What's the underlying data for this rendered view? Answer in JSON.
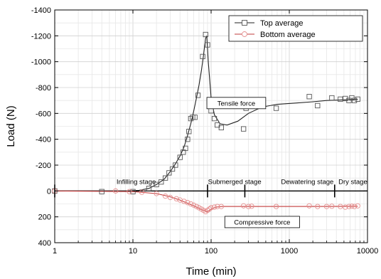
{
  "chart_data": {
    "type": "scatter",
    "xscale": "log",
    "xlim": [
      1,
      10000
    ],
    "ylim": [
      -1400,
      400
    ],
    "yaxis_inverted": true,
    "grid": true,
    "xlabel": "Time (min)",
    "ylabel": "Load (N)",
    "x_ticks": [
      {
        "value": 1,
        "label": "1"
      },
      {
        "value": 10,
        "label": "10"
      },
      {
        "value": 100,
        "label": "100"
      },
      {
        "value": 1000,
        "label": "1000"
      },
      {
        "value": 10000,
        "label": "10000"
      }
    ],
    "y_ticks": [
      {
        "value": -1400,
        "label": "-1400"
      },
      {
        "value": -1200,
        "label": "-1200"
      },
      {
        "value": -1000,
        "label": "-1000"
      },
      {
        "value": -800,
        "label": "-800"
      },
      {
        "value": -600,
        "label": "-600"
      },
      {
        "value": -400,
        "label": "-400"
      },
      {
        "value": -200,
        "label": "-200"
      },
      {
        "value": 0,
        "label": "0"
      },
      {
        "value": 200,
        "label": "200"
      },
      {
        "value": 400,
        "label": "400"
      }
    ],
    "legend": {
      "position": "top-right",
      "entries": [
        {
          "label": "Top average",
          "marker": "square",
          "color": "#555555",
          "line_color": "#222222"
        },
        {
          "label": "Bottom average",
          "marker": "circle",
          "color": "#e58f8f",
          "line_color": "#c23b3b"
        }
      ]
    },
    "series": [
      {
        "name": "Top average",
        "color": "#555555",
        "marker": "square",
        "points": [
          [
            1,
            0
          ],
          [
            4,
            5
          ],
          [
            10,
            5
          ],
          [
            16,
            -20
          ],
          [
            20,
            -50
          ],
          [
            23,
            -70
          ],
          [
            26,
            -100
          ],
          [
            29,
            -140
          ],
          [
            32,
            -170
          ],
          [
            35,
            -200
          ],
          [
            40,
            -260
          ],
          [
            44,
            -300
          ],
          [
            47,
            -330
          ],
          [
            50,
            -400
          ],
          [
            52,
            -460
          ],
          [
            55,
            -560
          ],
          [
            58,
            -570
          ],
          [
            62,
            -570
          ],
          [
            68,
            -740
          ],
          [
            78,
            -1040
          ],
          [
            85,
            -1210
          ],
          [
            90,
            -1130
          ],
          [
            95,
            -690
          ],
          [
            100,
            -620
          ],
          [
            110,
            -560
          ],
          [
            120,
            -510
          ],
          [
            135,
            -490
          ],
          [
            260,
            -480
          ],
          [
            280,
            -640
          ],
          [
            330,
            -680
          ],
          [
            680,
            -640
          ],
          [
            1800,
            -730
          ],
          [
            2300,
            -660
          ],
          [
            3500,
            -720
          ],
          [
            4500,
            -710
          ],
          [
            5200,
            -715
          ],
          [
            5800,
            -700
          ],
          [
            6300,
            -720
          ],
          [
            6800,
            -700
          ],
          [
            7500,
            -710
          ]
        ],
        "fit": [
          [
            1,
            0
          ],
          [
            8,
            0
          ],
          [
            12,
            -5
          ],
          [
            16,
            -20
          ],
          [
            20,
            -50
          ],
          [
            25,
            -90
          ],
          [
            30,
            -150
          ],
          [
            35,
            -210
          ],
          [
            40,
            -270
          ],
          [
            45,
            -340
          ],
          [
            50,
            -430
          ],
          [
            55,
            -520
          ],
          [
            60,
            -620
          ],
          [
            65,
            -720
          ],
          [
            70,
            -820
          ],
          [
            75,
            -930
          ],
          [
            80,
            -1050
          ],
          [
            85,
            -1180
          ],
          [
            88,
            -1200
          ],
          [
            92,
            -1000
          ],
          [
            100,
            -720
          ],
          [
            110,
            -590
          ],
          [
            130,
            -520
          ],
          [
            160,
            -510
          ],
          [
            220,
            -540
          ],
          [
            300,
            -600
          ],
          [
            450,
            -650
          ],
          [
            700,
            -670
          ],
          [
            1200,
            -680
          ],
          [
            2000,
            -690
          ],
          [
            3000,
            -700
          ],
          [
            5000,
            -705
          ],
          [
            7500,
            -710
          ]
        ]
      },
      {
        "name": "Bottom average",
        "color": "#e58f8f",
        "marker": "circle",
        "points": [
          [
            1,
            0
          ],
          [
            6,
            0
          ],
          [
            9,
            5
          ],
          [
            13,
            10
          ],
          [
            20,
            20
          ],
          [
            26,
            40
          ],
          [
            30,
            50
          ],
          [
            36,
            60
          ],
          [
            40,
            70
          ],
          [
            45,
            80
          ],
          [
            50,
            90
          ],
          [
            55,
            100
          ],
          [
            60,
            110
          ],
          [
            65,
            120
          ],
          [
            70,
            130
          ],
          [
            75,
            140
          ],
          [
            80,
            150
          ],
          [
            85,
            160
          ],
          [
            90,
            150
          ],
          [
            95,
            140
          ],
          [
            100,
            130
          ],
          [
            110,
            125
          ],
          [
            120,
            120
          ],
          [
            135,
            120
          ],
          [
            260,
            115
          ],
          [
            300,
            120
          ],
          [
            330,
            118
          ],
          [
            680,
            120
          ],
          [
            1800,
            115
          ],
          [
            2300,
            120
          ],
          [
            3000,
            120
          ],
          [
            3500,
            118
          ],
          [
            4500,
            120
          ],
          [
            5200,
            125
          ],
          [
            5800,
            120
          ],
          [
            6300,
            118
          ],
          [
            6800,
            120
          ],
          [
            7500,
            115
          ]
        ],
        "fit": [
          [
            1,
            0
          ],
          [
            10,
            5
          ],
          [
            20,
            20
          ],
          [
            30,
            45
          ],
          [
            40,
            70
          ],
          [
            50,
            95
          ],
          [
            60,
            115
          ],
          [
            70,
            135
          ],
          [
            80,
            150
          ],
          [
            90,
            160
          ],
          [
            100,
            140
          ],
          [
            115,
            125
          ],
          [
            140,
            120
          ],
          [
            300,
            120
          ],
          [
            1000,
            120
          ],
          [
            3000,
            120
          ],
          [
            7500,
            118
          ]
        ]
      }
    ],
    "annotations": [
      {
        "text": "Infilling stage",
        "x": 11,
        "y": 0
      },
      {
        "text": "Submerged stage",
        "x": 200,
        "y": 0
      },
      {
        "text": "Dewatering stage",
        "x": 1700,
        "y": 0
      },
      {
        "text": "Dry stage",
        "x": 6500,
        "y": 0
      },
      {
        "text": "Tensile force",
        "x": 210,
        "y": -680,
        "boxed": true
      },
      {
        "text": "Compressive force",
        "x": 450,
        "y": 240,
        "boxed": true
      }
    ],
    "stage_markers": [
      1,
      90,
      270,
      3800
    ]
  }
}
